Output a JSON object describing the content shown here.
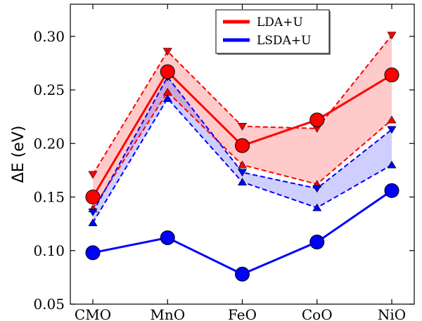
{
  "chart_data": {
    "type": "line",
    "categories": [
      "CMO",
      "MnO",
      "FeO",
      "CoO",
      "NiO"
    ],
    "ylabel": "ΔE (eV)",
    "ylim": [
      0.05,
      0.33
    ],
    "yticks": [
      0.05,
      0.1,
      0.15,
      0.2,
      0.25,
      0.3
    ],
    "ytick_labels": [
      "0.05",
      "0.10",
      "0.15",
      "0.20",
      "0.25",
      "0.30"
    ],
    "grid": false,
    "legend_position": "top-center",
    "series": [
      {
        "name": "LDA+U",
        "color": "#ff0000",
        "values": [
          0.15,
          0.267,
          0.198,
          0.222,
          0.264
        ],
        "upper": [
          0.171,
          0.286,
          0.216,
          0.214,
          0.301
        ],
        "lower": [
          0.139,
          0.248,
          0.18,
          0.162,
          0.222
        ]
      },
      {
        "name": "LSDA+U",
        "color": "#0000ff",
        "values": [
          0.098,
          0.112,
          0.078,
          0.108,
          0.156
        ],
        "upper": [
          0.136,
          0.262,
          0.173,
          0.158,
          0.213
        ],
        "lower": [
          0.126,
          0.242,
          0.164,
          0.14,
          0.18
        ]
      }
    ]
  }
}
